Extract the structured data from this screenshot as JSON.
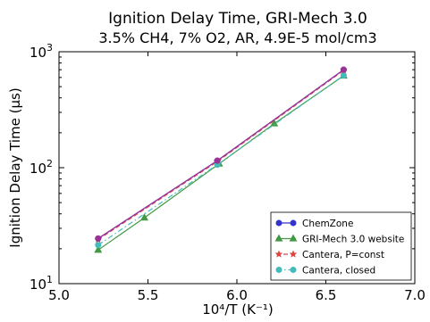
{
  "chart_data": {
    "type": "line",
    "title": "Ignition Delay Time, GRI-Mech 3.0",
    "subtitle": "3.5% CH4, 7% O2, AR, 4.9E-5 mol/cm3",
    "xlabel": "10⁴/T (K⁻¹)",
    "ylabel": "Ignition Delay Time (μs)",
    "xlim": [
      5.0,
      7.0
    ],
    "ylim": [
      10,
      1000
    ],
    "yscale": "log",
    "grid": false,
    "legend_placement": "lower-right",
    "x_ticks": [
      "5.0",
      "5.5",
      "6.0",
      "6.5",
      "7.0"
    ],
    "y_ticks": [
      {
        "value": 10,
        "base": "10",
        "exp": "1"
      },
      {
        "value": 100,
        "base": "10",
        "exp": "2"
      },
      {
        "value": 1000,
        "base": "10",
        "exp": "3"
      }
    ],
    "series": [
      {
        "name": "ChemZone",
        "color": "#3333cc",
        "marker": "circle",
        "dash": "solid",
        "points": [
          [
            5.22,
            24.5
          ],
          [
            5.89,
            115
          ],
          [
            6.6,
            700
          ]
        ]
      },
      {
        "name": "GRI-Mech 3.0 website",
        "color": "#449944",
        "marker": "triangle",
        "dash": "solid",
        "points": [
          [
            5.22,
            19.5
          ],
          [
            5.48,
            37
          ],
          [
            5.9,
            108
          ],
          [
            6.21,
            240
          ],
          [
            6.6,
            620
          ]
        ]
      },
      {
        "name": "Cantera, P=const",
        "color": "#dd4444",
        "marker": "star",
        "dash": "dashed",
        "points": [
          [
            5.22,
            24
          ],
          [
            5.89,
            113
          ],
          [
            6.6,
            690
          ]
        ]
      },
      {
        "name": "Cantera, closed",
        "color": "#44bbbb",
        "marker": "circle",
        "dash": "dashdot",
        "points": [
          [
            5.22,
            21.5
          ],
          [
            5.89,
            106
          ],
          [
            6.6,
            625
          ]
        ]
      }
    ],
    "overlay_color": "#993399"
  }
}
